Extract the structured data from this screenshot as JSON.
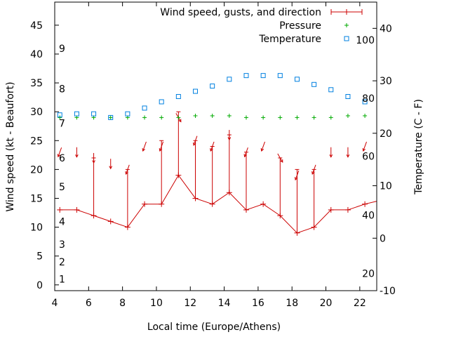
{
  "chart_data": {
    "type": "line",
    "xlabel": "Local time (Europe/Athens)",
    "ylabel_left": "Wind speed (kt - Beaufort)",
    "ylabel_right": "Temperature (C - F)",
    "x_range": [
      4,
      23
    ],
    "x_ticks": [
      4,
      6,
      8,
      10,
      12,
      14,
      16,
      18,
      20,
      22
    ],
    "y_left_range": [
      -1,
      49
    ],
    "y_left_ticks": [
      0,
      5,
      10,
      15,
      20,
      25,
      30,
      35,
      40,
      45
    ],
    "beaufort_labels": [
      {
        "label": "1",
        "y": 1
      },
      {
        "label": "2",
        "y": 4
      },
      {
        "label": "3",
        "y": 7
      },
      {
        "label": "4",
        "y": 11
      },
      {
        "label": "5",
        "y": 17
      },
      {
        "label": "6",
        "y": 22
      },
      {
        "label": "7",
        "y": 28
      },
      {
        "label": "8",
        "y": 34
      },
      {
        "label": "9",
        "y": 41
      }
    ],
    "y_right_range": [
      -10,
      45
    ],
    "y_right_ticks": [
      -10,
      0,
      10,
      20,
      30,
      40
    ],
    "fahrenheit_labels": [
      {
        "label": "20",
        "temp_c": -6.7
      },
      {
        "label": "40",
        "temp_c": 4.4
      },
      {
        "label": "60",
        "temp_c": 15.6
      },
      {
        "label": "80",
        "temp_c": 26.7
      },
      {
        "label": "100",
        "temp_c": 37.8
      }
    ],
    "legend_position": "top-right",
    "series": [
      {
        "name": "Wind speed, gusts, and direction",
        "color": "#cc0000",
        "points": [
          {
            "x": 4.3,
            "speed": 13,
            "gust": 13,
            "dir_deg": 200
          },
          {
            "x": 5.3,
            "speed": 13,
            "gust": 13,
            "dir_deg": 180
          },
          {
            "x": 6.3,
            "speed": 12,
            "gust": 22,
            "dir_deg": 180
          },
          {
            "x": 7.3,
            "speed": 11,
            "gust": 11,
            "dir_deg": 180
          },
          {
            "x": 8.3,
            "speed": 10,
            "gust": 20,
            "dir_deg": 200
          },
          {
            "x": 9.3,
            "speed": 14,
            "gust": 14,
            "dir_deg": 200
          },
          {
            "x": 10.3,
            "speed": 14,
            "gust": 25,
            "dir_deg": 200
          },
          {
            "x": 11.3,
            "speed": 19,
            "gust": 30,
            "dir_deg": 150
          },
          {
            "x": 12.3,
            "speed": 15,
            "gust": 25,
            "dir_deg": 200
          },
          {
            "x": 13.3,
            "speed": 14,
            "gust": 24,
            "dir_deg": 200
          },
          {
            "x": 14.3,
            "speed": 16,
            "gust": 26,
            "dir_deg": 180
          },
          {
            "x": 15.3,
            "speed": 13,
            "gust": 23,
            "dir_deg": 200
          },
          {
            "x": 16.3,
            "speed": 14,
            "gust": 14,
            "dir_deg": 200
          },
          {
            "x": 17.3,
            "speed": 12,
            "gust": 22,
            "dir_deg": 150
          },
          {
            "x": 18.3,
            "speed": 9,
            "gust": 20,
            "dir_deg": 200
          },
          {
            "x": 19.3,
            "speed": 10,
            "gust": 20,
            "dir_deg": 200
          },
          {
            "x": 20.3,
            "speed": 13,
            "gust": 13,
            "dir_deg": 180
          },
          {
            "x": 21.3,
            "speed": 13,
            "gust": 13,
            "dir_deg": 180
          },
          {
            "x": 22.3,
            "speed": 14,
            "gust": 14,
            "dir_deg": 200
          },
          {
            "x": 23.0,
            "speed": 14.5,
            "gust": 14.5
          }
        ]
      },
      {
        "name": "Pressure",
        "color": "#00aa00",
        "marker": "plus",
        "axis": "left",
        "x": [
          4.3,
          5.3,
          6.3,
          7.3,
          8.3,
          9.3,
          10.3,
          11.3,
          12.3,
          13.3,
          14.3,
          15.3,
          16.3,
          17.3,
          18.3,
          19.3,
          20.3,
          21.3,
          22.3
        ],
        "y": [
          29,
          29,
          29,
          29,
          29,
          29,
          29,
          29,
          29.3,
          29.3,
          29.3,
          29,
          29,
          29,
          29,
          29,
          29,
          29.3,
          29.3
        ]
      },
      {
        "name": "Temperature",
        "color": "#0080e0",
        "marker": "square",
        "axis": "right",
        "x": [
          4.3,
          5.3,
          6.3,
          7.3,
          8.3,
          9.3,
          10.3,
          11.3,
          12.3,
          13.3,
          14.3,
          15.3,
          16.3,
          17.3,
          18.3,
          19.3,
          20.3,
          21.3,
          22.3
        ],
        "y": [
          23.5,
          23.7,
          23.7,
          23,
          23.7,
          24.8,
          26,
          27,
          28,
          29,
          30.3,
          31,
          31,
          31,
          30.3,
          29.3,
          28.3,
          27,
          26
        ]
      }
    ]
  }
}
